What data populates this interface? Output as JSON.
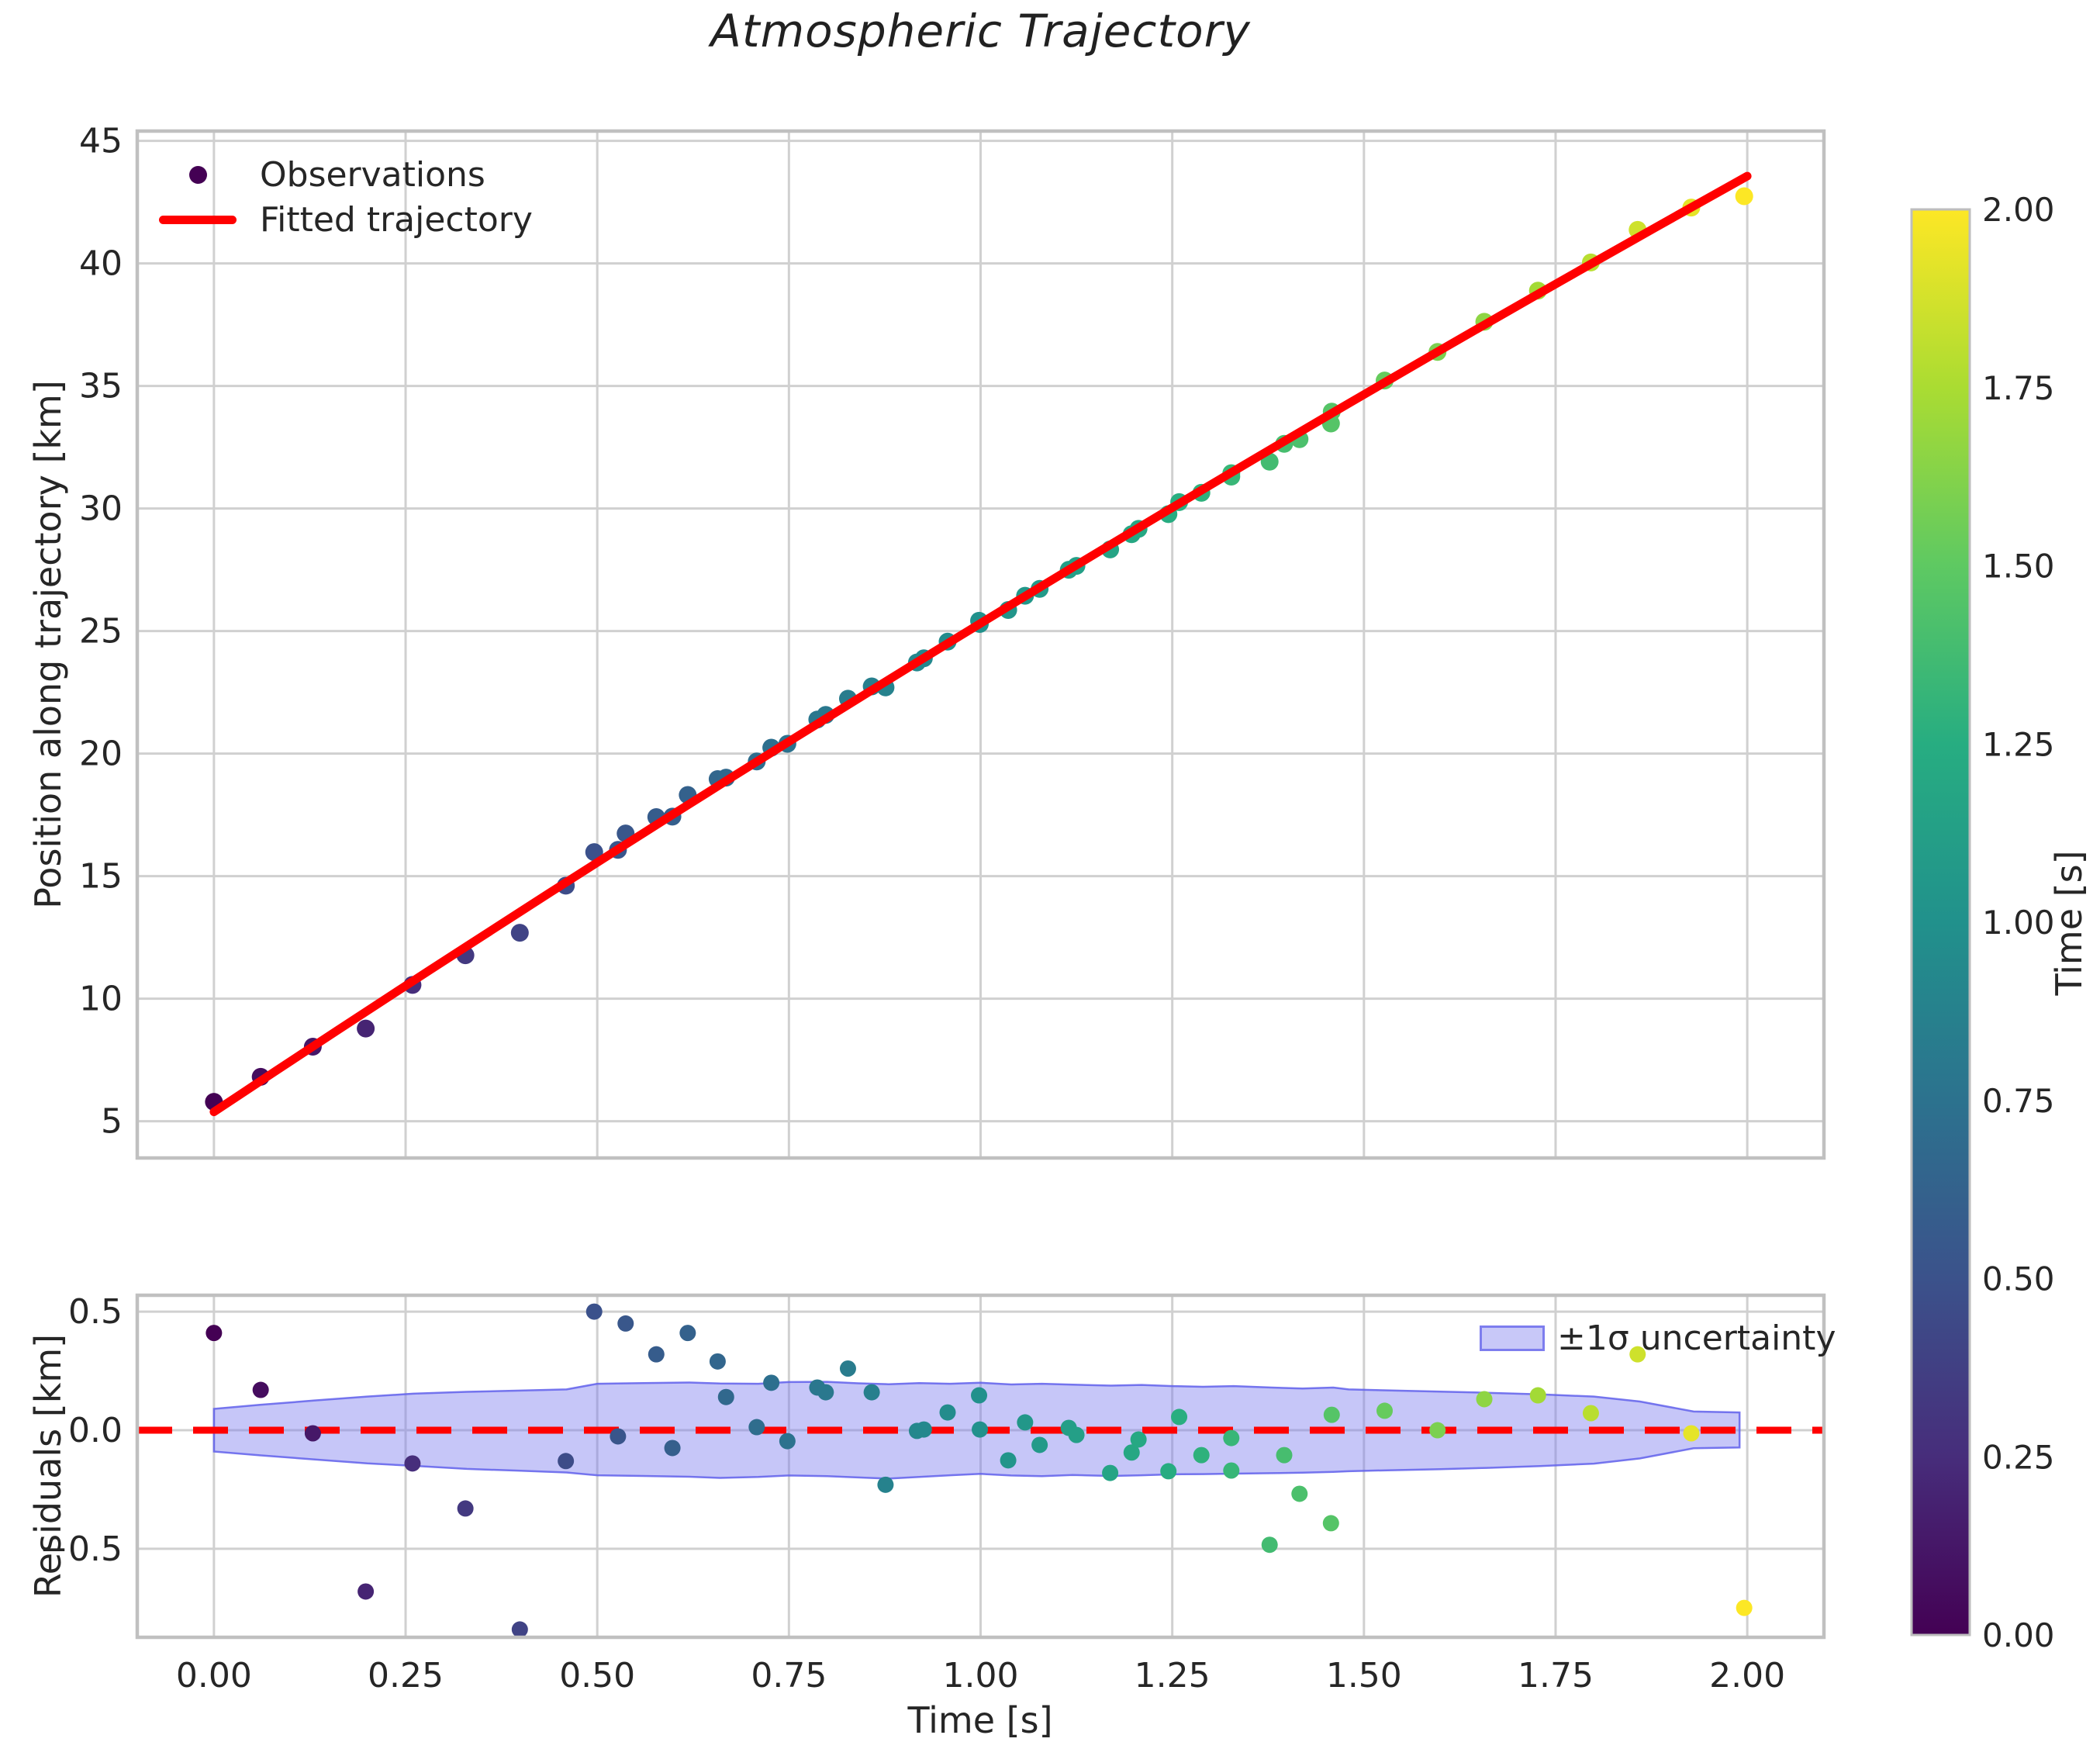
{
  "figure": {
    "title": "Atmospheric Trajectory",
    "background": "#ffffff",
    "grid_color": "#d0d0d0",
    "spine_color": "#c0c0c0",
    "text_color": "#262626",
    "accent_red": "#ff0000"
  },
  "legend_main": {
    "observations_label": "Observations",
    "fitted_label": "Fitted trajectory",
    "marker_color": "#440154",
    "line_color": "#ff0000"
  },
  "legend_residual": {
    "band_label": "±1σ uncertainty",
    "band_fill": "#b9b9f3",
    "band_edge": "#6b6bea"
  },
  "colorbar": {
    "label": "Time [s]",
    "vmin": 0,
    "vmax": 2,
    "tick_values": [
      2.0,
      1.75,
      1.5,
      1.25,
      1.0,
      0.75,
      0.5,
      0.25,
      0.0
    ],
    "tick_labels": [
      "2.00",
      "1.75",
      "1.50",
      "1.25",
      "1.00",
      "0.75",
      "0.50",
      "0.25",
      "0.00"
    ],
    "colormap": "viridis",
    "stops": [
      [
        0,
        "#440154"
      ],
      [
        0.125,
        "#472d7b"
      ],
      [
        0.25,
        "#3b528b"
      ],
      [
        0.375,
        "#2c728e"
      ],
      [
        0.5,
        "#21918c"
      ],
      [
        0.625,
        "#27ad81"
      ],
      [
        0.75,
        "#5ec962"
      ],
      [
        0.875,
        "#aadc32"
      ],
      [
        1,
        "#fde725"
      ]
    ]
  },
  "chart_data": [
    {
      "type": "scatter",
      "title": "Atmospheric Trajectory",
      "xlabel": "",
      "ylabel": "Position along trajectory [km]",
      "xlim": [
        -0.1,
        2.1
      ],
      "ylim": [
        3.5,
        45.4
      ],
      "grid": true,
      "xticks": [
        0,
        0.25,
        0.5,
        0.75,
        1,
        1.25,
        1.5,
        1.75,
        2
      ],
      "yticks": [
        5,
        10,
        15,
        20,
        25,
        30,
        35,
        40,
        45
      ],
      "show_x_tick_labels": false,
      "legend_position": "upper left",
      "series": [
        {
          "name": "Observations",
          "kind": "scatter",
          "color_by": "time-viridis",
          "points": [
            [
              0.0,
              5.79
            ],
            [
              0.061,
              6.81
            ],
            [
              0.129,
              8.04
            ],
            [
              0.198,
              8.78
            ],
            [
              0.259,
              10.56
            ],
            [
              0.328,
              11.77
            ],
            [
              0.399,
              12.69
            ],
            [
              0.459,
              14.61
            ],
            [
              0.496,
              15.98
            ],
            [
              0.527,
              16.07
            ],
            [
              0.537,
              16.74
            ],
            [
              0.577,
              17.41
            ],
            [
              0.598,
              17.43
            ],
            [
              0.618,
              18.31
            ],
            [
              0.657,
              18.96
            ],
            [
              0.668,
              19.02
            ],
            [
              0.708,
              19.68
            ],
            [
              0.727,
              20.24
            ],
            [
              0.748,
              20.4
            ],
            [
              0.787,
              21.39
            ],
            [
              0.798,
              21.58
            ],
            [
              0.827,
              22.24
            ],
            [
              0.858,
              22.74
            ],
            [
              0.876,
              22.7
            ],
            [
              0.917,
              23.72
            ],
            [
              0.926,
              23.89
            ],
            [
              0.957,
              24.57
            ],
            [
              0.998,
              25.42
            ],
            [
              0.999,
              25.29
            ],
            [
              1.036,
              25.86
            ],
            [
              1.058,
              26.44
            ],
            [
              1.077,
              26.72
            ],
            [
              1.115,
              27.5
            ],
            [
              1.125,
              27.66
            ],
            [
              1.169,
              28.33
            ],
            [
              1.197,
              28.95
            ],
            [
              1.206,
              29.17
            ],
            [
              1.245,
              29.77
            ],
            [
              1.259,
              30.26
            ],
            [
              1.288,
              30.64
            ],
            [
              1.327,
              31.44
            ],
            [
              1.327,
              31.3
            ],
            [
              1.377,
              31.91
            ],
            [
              1.396,
              32.64
            ],
            [
              1.416,
              32.83
            ],
            [
              1.457,
              33.47
            ],
            [
              1.458,
              33.95
            ],
            [
              1.527,
              35.22
            ],
            [
              1.596,
              36.39
            ],
            [
              1.657,
              37.62
            ],
            [
              1.727,
              38.89
            ],
            [
              1.796,
              40.04
            ],
            [
              1.857,
              41.37
            ],
            [
              1.927,
              42.28
            ],
            [
              1.996,
              42.74
            ]
          ]
        },
        {
          "name": "Fitted trajectory",
          "kind": "line",
          "color": "#ff0000",
          "fit": {
            "intercept": 5.38,
            "slope": 20.78,
            "quad": -0.845
          },
          "x_range": [
            0,
            2
          ]
        }
      ]
    },
    {
      "type": "scatter",
      "xlabel": "Time [s]",
      "ylabel": "Residuals [km]",
      "xlim": [
        -0.1,
        2.1
      ],
      "ylim": [
        -0.873,
        0.569
      ],
      "grid": true,
      "xticks": [
        0,
        0.25,
        0.5,
        0.75,
        1,
        1.25,
        1.5,
        1.75,
        2
      ],
      "xtick_labels": [
        "0.00",
        "0.25",
        "0.50",
        "0.75",
        "1.00",
        "1.25",
        "1.50",
        "1.75",
        "2.00"
      ],
      "yticks": [
        0.5,
        0,
        -0.5
      ],
      "ytick_labels": [
        "0.5",
        "0.0",
        "−0.5"
      ],
      "zero_line": {
        "y": 0,
        "color": "#ff0000",
        "dash": [
          45,
          27
        ],
        "width": 9
      },
      "band": {
        "label": "±1σ uncertainty",
        "nodes": [
          [
            0.0,
            0.09,
            -0.09
          ],
          [
            0.06,
            0.107,
            -0.106
          ],
          [
            0.13,
            0.125,
            -0.123
          ],
          [
            0.2,
            0.142,
            -0.14
          ],
          [
            0.26,
            0.154,
            -0.15
          ],
          [
            0.33,
            0.162,
            -0.163
          ],
          [
            0.4,
            0.167,
            -0.171
          ],
          [
            0.46,
            0.172,
            -0.178
          ],
          [
            0.5,
            0.196,
            -0.19
          ],
          [
            0.56,
            0.199,
            -0.193
          ],
          [
            0.62,
            0.201,
            -0.196
          ],
          [
            0.66,
            0.197,
            -0.201
          ],
          [
            0.71,
            0.196,
            -0.197
          ],
          [
            0.75,
            0.203,
            -0.191
          ],
          [
            0.8,
            0.204,
            -0.194
          ],
          [
            0.84,
            0.198,
            -0.199
          ],
          [
            0.88,
            0.194,
            -0.204
          ],
          [
            0.92,
            0.199,
            -0.197
          ],
          [
            0.96,
            0.196,
            -0.19
          ],
          [
            1.0,
            0.2,
            -0.184
          ],
          [
            1.04,
            0.193,
            -0.191
          ],
          [
            1.08,
            0.196,
            -0.194
          ],
          [
            1.12,
            0.192,
            -0.189
          ],
          [
            1.17,
            0.188,
            -0.193
          ],
          [
            1.21,
            0.191,
            -0.19
          ],
          [
            1.25,
            0.186,
            -0.186
          ],
          [
            1.29,
            0.183,
            -0.185
          ],
          [
            1.33,
            0.186,
            -0.183
          ],
          [
            1.38,
            0.18,
            -0.181
          ],
          [
            1.42,
            0.176,
            -0.179
          ],
          [
            1.46,
            0.18,
            -0.176
          ],
          [
            1.48,
            0.172,
            -0.173
          ],
          [
            1.53,
            0.168,
            -0.169
          ],
          [
            1.6,
            0.163,
            -0.164
          ],
          [
            1.66,
            0.158,
            -0.159
          ],
          [
            1.73,
            0.151,
            -0.151
          ],
          [
            1.8,
            0.142,
            -0.141
          ],
          [
            1.86,
            0.121,
            -0.119
          ],
          [
            1.93,
            0.079,
            -0.076
          ],
          [
            1.99,
            0.075,
            -0.073
          ]
        ]
      },
      "series": [
        {
          "name": "Residuals",
          "kind": "scatter",
          "color_by": "time-viridis",
          "points": [
            [
              0.0,
              0.41
            ],
            [
              0.061,
              0.17
            ],
            [
              0.129,
              -0.013
            ],
            [
              0.198,
              -0.68
            ],
            [
              0.259,
              -0.14
            ],
            [
              0.328,
              -0.33
            ],
            [
              0.399,
              -0.84
            ],
            [
              0.459,
              -0.13
            ],
            [
              0.496,
              0.5
            ],
            [
              0.527,
              -0.026
            ],
            [
              0.537,
              0.45
            ],
            [
              0.577,
              0.32
            ],
            [
              0.598,
              -0.075
            ],
            [
              0.618,
              0.41
            ],
            [
              0.657,
              0.29
            ],
            [
              0.668,
              0.14
            ],
            [
              0.708,
              0.013
            ],
            [
              0.727,
              0.2
            ],
            [
              0.748,
              -0.046
            ],
            [
              0.787,
              0.18
            ],
            [
              0.798,
              0.16
            ],
            [
              0.827,
              0.26
            ],
            [
              0.858,
              0.16
            ],
            [
              0.876,
              -0.23
            ],
            [
              0.917,
              -0.003
            ],
            [
              0.926,
              0.003
            ],
            [
              0.957,
              0.075
            ],
            [
              0.998,
              0.147
            ],
            [
              0.999,
              0.003
            ],
            [
              1.036,
              -0.127
            ],
            [
              1.058,
              0.033
            ],
            [
              1.077,
              -0.062
            ],
            [
              1.115,
              0.01
            ],
            [
              1.125,
              -0.02
            ],
            [
              1.169,
              -0.18
            ],
            [
              1.197,
              -0.094
            ],
            [
              1.206,
              -0.039
            ],
            [
              1.245,
              -0.173
            ],
            [
              1.259,
              0.056
            ],
            [
              1.288,
              -0.105
            ],
            [
              1.327,
              -0.033
            ],
            [
              1.327,
              -0.17
            ],
            [
              1.377,
              -0.483
            ],
            [
              1.396,
              -0.105
            ],
            [
              1.416,
              -0.268
            ],
            [
              1.457,
              -0.392
            ],
            [
              1.458,
              0.065
            ],
            [
              1.527,
              0.082
            ],
            [
              1.596,
              0.0
            ],
            [
              1.657,
              0.131
            ],
            [
              1.727,
              0.147
            ],
            [
              1.796,
              0.072
            ],
            [
              1.857,
              0.32
            ],
            [
              1.927,
              -0.013
            ],
            [
              1.996,
              -0.749
            ]
          ]
        }
      ]
    }
  ]
}
